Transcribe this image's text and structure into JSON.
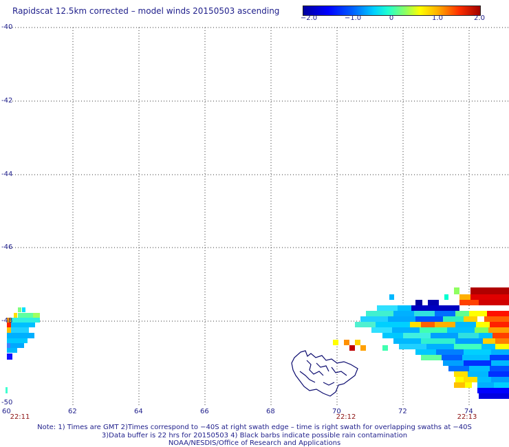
{
  "title": "Rapidscat 12.5km corrected – model winds 20150503 ascending",
  "colorbar": {
    "ticks": [
      "−2.0",
      "−1.0",
      "0",
      "1.0",
      "2.0"
    ],
    "range": [
      -2.0,
      2.0
    ]
  },
  "chart_data": {
    "type": "heatmap",
    "title": "Rapidscat 12.5km corrected – model winds 20150503 ascending",
    "x_range": [
      60,
      75
    ],
    "y_range": [
      -50,
      -40
    ],
    "x_ticks": [
      "60",
      "62",
      "64",
      "66",
      "68",
      "70",
      "72",
      "74"
    ],
    "y_ticks": [
      "-40",
      "-42",
      "-44",
      "-46",
      "-48",
      "-50"
    ],
    "grid": true,
    "value_range": [
      -2.0,
      2.0
    ],
    "swath_times": [
      {
        "label": "22:11",
        "lon": 60.2
      },
      {
        "label": "22:12",
        "lon": 70.3
      },
      {
        "label": "22:13",
        "lon": 74.0
      }
    ]
  },
  "notes": [
    "Note: 1) Times are GMT 2)Times correspond to −40S at right swath edge – time is right swath for overlapping swaths at −40S",
    "3)Data buffer is 22 hrs for 20150503 4) Black barbs indicate possible rain contamination",
    "NOAA/NESDIS/Office of Research and Applications"
  ],
  "colors": {
    "text": "#1d1d8a",
    "time_label": "#8b1010",
    "coastline": "#0a0a6e"
  }
}
